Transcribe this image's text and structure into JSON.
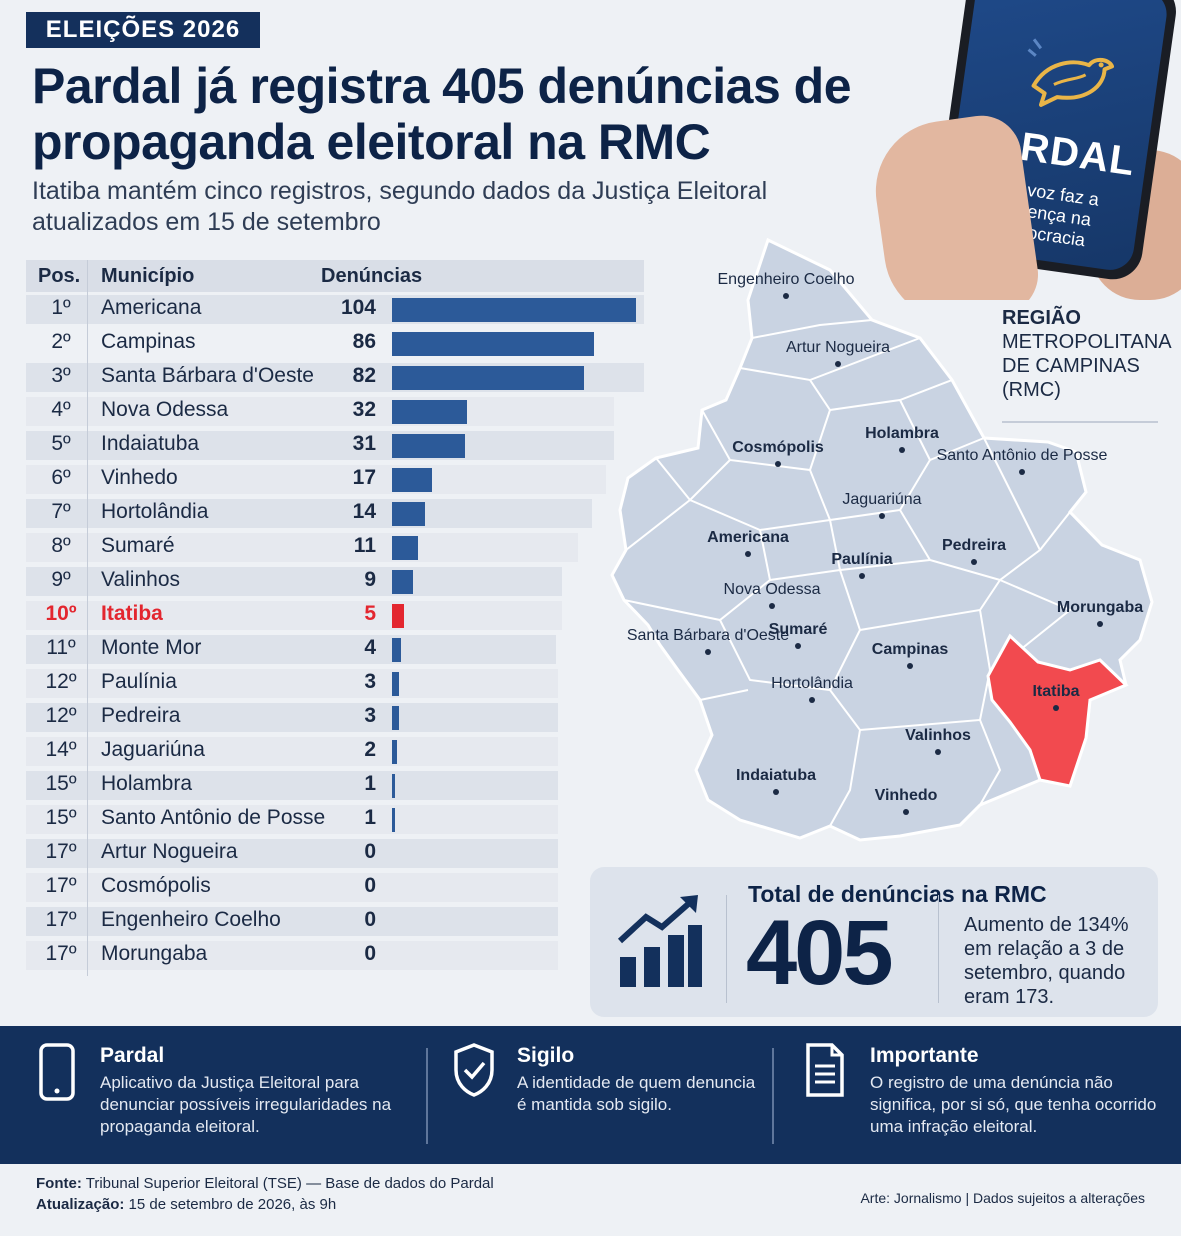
{
  "header": {
    "tag": "ELEIÇÕES 2026",
    "headline": "Pardal já registra 405 denúncias de propaganda eleitoral na RMC",
    "subtitle": "Itatiba mantém cinco registros, segundo dados da Justiça Eleitoral atualizados em 15 de setembro"
  },
  "phone": {
    "title": "PARDAL",
    "tagline": "Sua voz faz a diferença na democracia",
    "icon": "sparrow-logo-icon"
  },
  "table": {
    "headers": {
      "pos": "Pos.",
      "municipio": "Município",
      "denuncias": "Denúncias"
    },
    "rows": [
      {
        "pos": "1º",
        "name": "Americana",
        "value": "104"
      },
      {
        "pos": "2º",
        "name": "Campinas",
        "value": "86"
      },
      {
        "pos": "3º",
        "name": "Santa Bárbara d'Oeste",
        "value": "82"
      },
      {
        "pos": "4º",
        "name": "Nova Odessa",
        "value": "32"
      },
      {
        "pos": "5º",
        "name": "Indaiatuba",
        "value": "31"
      },
      {
        "pos": "6º",
        "name": "Vinhedo",
        "value": "17"
      },
      {
        "pos": "7º",
        "name": "Hortolândia",
        "value": "14"
      },
      {
        "pos": "8º",
        "name": "Sumaré",
        "value": "11"
      },
      {
        "pos": "9º",
        "name": "Valinhos",
        "value": "9"
      },
      {
        "pos": "10º",
        "name": "Itatiba",
        "value": "5"
      },
      {
        "pos": "11º",
        "name": "Monte Mor",
        "value": "4"
      },
      {
        "pos": "12º",
        "name": "Paulínia",
        "value": "3"
      },
      {
        "pos": "12º",
        "name": "Pedreira",
        "value": "3"
      },
      {
        "pos": "14º",
        "name": "Jaguariúna",
        "value": "2"
      },
      {
        "pos": "15º",
        "name": "Holambra",
        "value": "1"
      },
      {
        "pos": "15º",
        "name": "Santo Antônio de Posse",
        "value": "1"
      },
      {
        "pos": "17º",
        "name": "Artur Nogueira",
        "value": "0"
      },
      {
        "pos": "17º",
        "name": "Cosmópolis",
        "value": "0"
      },
      {
        "pos": "17º",
        "name": "Engenheiro Coelho",
        "value": "0"
      },
      {
        "pos": "17º",
        "name": "Morungaba",
        "value": "0"
      }
    ]
  },
  "chart_data": {
    "type": "bar",
    "orientation": "horizontal",
    "categories": [
      "Americana",
      "Campinas",
      "Santa Bárbara d'Oeste",
      "Nova Odessa",
      "Indaiatuba",
      "Vinhedo",
      "Hortolândia",
      "Sumaré",
      "Valinhos",
      "Itatiba",
      "Monte Mor",
      "Paulínia",
      "Pedreira",
      "Jaguariúna",
      "Holambra",
      "Santo Antônio de Posse",
      "Artur Nogueira",
      "Cosmópolis",
      "Engenheiro Coelho",
      "Morungaba"
    ],
    "values": [
      104,
      86,
      82,
      32,
      31,
      17,
      14,
      11,
      9,
      5,
      4,
      3,
      3,
      2,
      1,
      1,
      0,
      0,
      0,
      0
    ],
    "highlight": "Itatiba",
    "colors": {
      "bar": "#2c5a99",
      "highlight": "#e3262f"
    }
  },
  "map": {
    "title_bold": "REGIÃO",
    "title_rest": "METROPOLITANA DE CAMPINAS (RMC)",
    "highlight": "Itatiba",
    "colors": {
      "fill": "#c9d3e2",
      "highlight": "#f24a4f",
      "border": "#ffffff"
    },
    "labels": [
      "Engenheiro Coelho",
      "Artur Nogueira",
      "Holambra",
      "Cosmópolis",
      "Santo Antônio de Posse",
      "Jaguariúna",
      "Americana",
      "Paulínia",
      "Pedreira",
      "Nova Odessa",
      "Morungaba",
      "Santa Bárbara d'Oeste",
      "Sumaré",
      "Campinas",
      "Itatiba",
      "Hortolândia",
      "Valinhos",
      "Indaiatuba",
      "Vinhedo"
    ]
  },
  "total": {
    "label": "Total de denúncias na RMC",
    "value": "405",
    "note": "Aumento de 134% em relação a 3 de setembro, quando eram 173.",
    "icon": "growth-chart-icon"
  },
  "info": [
    {
      "title": "Pardal",
      "text": "Aplicativo da Justiça Eleitoral para denunciar possíveis irregularidades na propaganda eleitoral.",
      "icon": "smartphone-icon"
    },
    {
      "title": "Sigilo",
      "text": "A identidade de quem denuncia é mantida sob sigilo.",
      "icon": "shield-check-icon"
    },
    {
      "title": "Importante",
      "text": "O registro de uma denúncia não significa, por si só, que tenha ocorrido uma infração eleitoral.",
      "icon": "document-icon"
    }
  ],
  "footer": {
    "source_label": "Fonte:",
    "source": "Tribunal Superior Eleitoral (TSE) — Base de dados do Pardal",
    "update_label": "Atualização:",
    "update": "15 de setembro de 2026, às 9h",
    "credits": "Arte: Jornalismo | Dados sujeitos a alterações"
  }
}
